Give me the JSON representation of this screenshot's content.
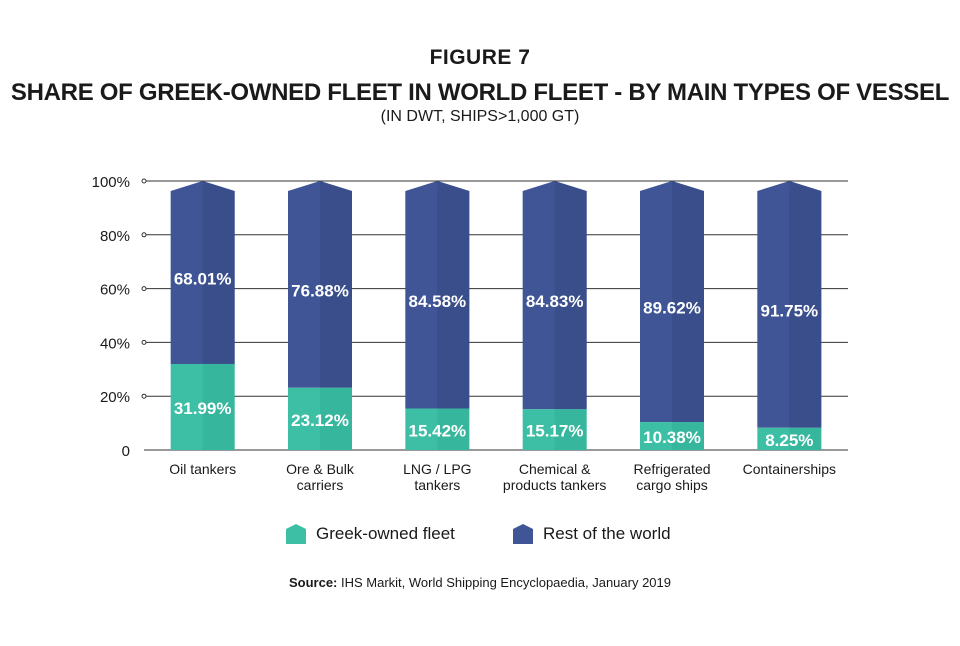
{
  "figure_label": "FIGURE 7",
  "title": "SHARE OF GREEK-OWNED FLEET IN WORLD FLEET - BY MAIN TYPES OF VESSEL",
  "subtitle": "(IN DWT, SHIPS>1,000 GT)",
  "source": {
    "prefix": "Source:",
    "text": " IHS Markit, World Shipping Encyclopaedia, January 2019"
  },
  "colors": {
    "greek": "#3dbfa6",
    "greek_dark": "#2fa58e",
    "rest": "#3f5595",
    "rest_dark": "#34487f",
    "grid": "#333333"
  },
  "chart_data": {
    "type": "bar",
    "stacked": true,
    "categories": [
      [
        "Oil tankers"
      ],
      [
        "Ore & Bulk",
        "carriers"
      ],
      [
        "LNG / LPG",
        "tankers"
      ],
      [
        "Chemical &",
        "products tankers"
      ],
      [
        "Refrigerated",
        "cargo ships"
      ],
      [
        "Containerships"
      ]
    ],
    "series": [
      {
        "name": "Greek-owned fleet",
        "values": [
          31.99,
          23.12,
          15.42,
          15.17,
          10.38,
          8.25
        ],
        "labels": [
          "31.99%",
          "23.12%",
          "15.42%",
          "15.17%",
          "10.38%",
          "8.25%"
        ]
      },
      {
        "name": "Rest of the world",
        "values": [
          68.01,
          76.88,
          84.58,
          84.83,
          89.62,
          91.75
        ],
        "labels": [
          "68.01%",
          "76.88%",
          "84.58%",
          "84.83%",
          "89.62%",
          "91.75%"
        ]
      }
    ],
    "y_ticks": [
      0,
      20,
      40,
      60,
      80,
      100
    ],
    "y_tick_labels": [
      "0",
      "20%",
      "40%",
      "60%",
      "80%",
      "100%"
    ],
    "ylim": [
      0,
      100
    ],
    "grid": true,
    "legend_position": "bottom"
  }
}
